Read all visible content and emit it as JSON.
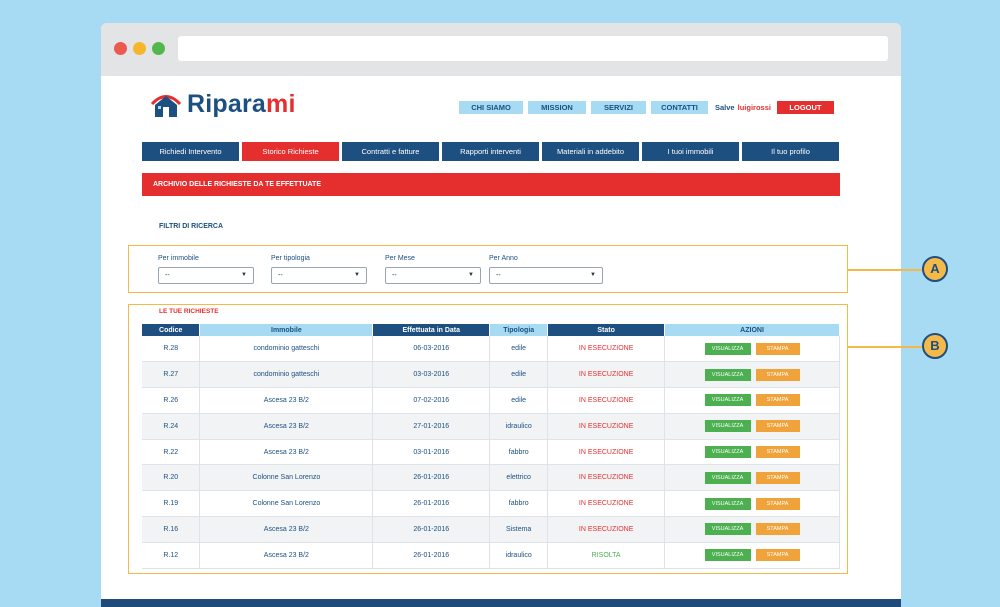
{
  "brand": {
    "name_main": "Ripara",
    "name_accent": "mi"
  },
  "topnav": [
    {
      "label": "CHI SIAMO"
    },
    {
      "label": "MISSION"
    },
    {
      "label": "SERVIZI"
    },
    {
      "label": "CONTATTI"
    }
  ],
  "user": {
    "greeting": "Salve",
    "name": "luigirossi",
    "logout": "LOGOUT"
  },
  "mainnav": [
    {
      "label": "Richiedi Intervento"
    },
    {
      "label": "Storico Richieste"
    },
    {
      "label": "Contratti e fatture"
    },
    {
      "label": "Rapporti interventi"
    },
    {
      "label": "Materiali in addebito"
    },
    {
      "label": "I tuoi immobili"
    },
    {
      "label": "Il tuo profilo"
    }
  ],
  "banner": "ARCHIVIO DELLE RICHIESTE DA TE EFFETTUATE",
  "filters": {
    "title": "FILTRI DI RICERCA",
    "items": [
      {
        "label": "Per immobile",
        "value": "--"
      },
      {
        "label": "Per tipologia",
        "value": "--"
      },
      {
        "label": "Per Mese",
        "value": "--"
      },
      {
        "label": "Per Anno",
        "value": "--"
      }
    ]
  },
  "list_title": "LE TUE RICHIESTE",
  "table": {
    "headers": [
      "Codice",
      "Immobile",
      "Effettuata in Data",
      "Tipologia",
      "Stato",
      "AZIONI"
    ],
    "action_view": "VISUALIZZA",
    "action_print": "STAMPA",
    "rows": [
      {
        "codice": "R.28",
        "immobile": "condominio gatteschi",
        "data": "06-03-2016",
        "tipologia": "edile",
        "stato": "IN ESECUZIONE"
      },
      {
        "codice": "R.27",
        "immobile": "condominio gatteschi",
        "data": "03-03-2016",
        "tipologia": "edile",
        "stato": "IN ESECUZIONE"
      },
      {
        "codice": "R.26",
        "immobile": "Ascesa 23 B/2",
        "data": "07-02-2016",
        "tipologia": "edile",
        "stato": "IN ESECUZIONE"
      },
      {
        "codice": "R.24",
        "immobile": "Ascesa 23 B/2",
        "data": "27-01-2016",
        "tipologia": "idraulico",
        "stato": "IN ESECUZIONE"
      },
      {
        "codice": "R.22",
        "immobile": "Ascesa 23 B/2",
        "data": "03-01-2016",
        "tipologia": "fabbro",
        "stato": "IN ESECUZIONE"
      },
      {
        "codice": "R.20",
        "immobile": "Colonne San Lorenzo",
        "data": "26-01-2016",
        "tipologia": "elettrico",
        "stato": "IN ESECUZIONE"
      },
      {
        "codice": "R.19",
        "immobile": "Colonne San Lorenzo",
        "data": "26-01-2016",
        "tipologia": "fabbro",
        "stato": "IN ESECUZIONE"
      },
      {
        "codice": "R.16",
        "immobile": "Ascesa 23 B/2",
        "data": "26-01-2016",
        "tipologia": "Sistema",
        "stato": "IN ESECUZIONE"
      },
      {
        "codice": "R.12",
        "immobile": "Ascesa 23 B/2",
        "data": "26-01-2016",
        "tipologia": "idraulico",
        "stato": "RISOLTA"
      }
    ]
  },
  "markers": {
    "a": "A",
    "b": "B"
  },
  "colors": {
    "navy": "#1d4f80",
    "red": "#e52f2f",
    "lightblue": "#a7dbf4",
    "green": "#4caf50",
    "orange": "#f0a23b",
    "highlight": "#f5b94a"
  }
}
